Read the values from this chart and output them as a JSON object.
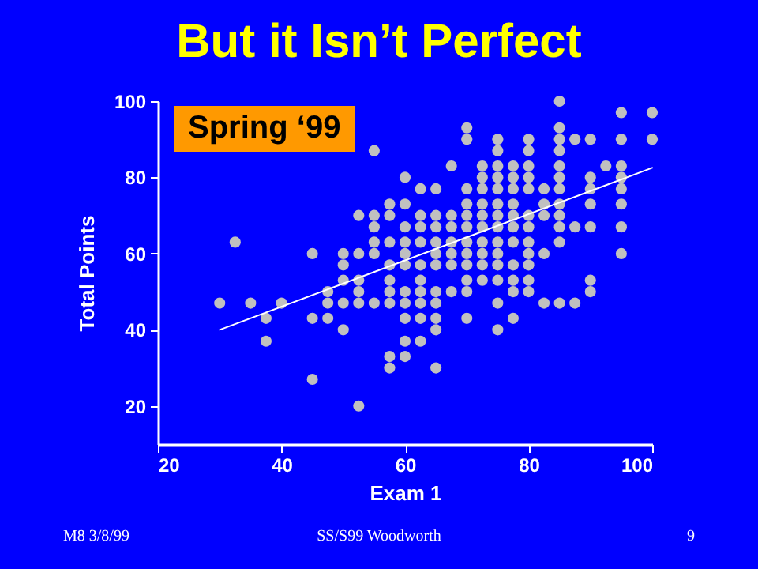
{
  "chart_data": {
    "type": "scatter",
    "title": "But it Isn’t Perfect",
    "xlabel": "Exam 1",
    "ylabel": "Total Points",
    "annotations": [
      "Spring ‘99",
      "M8 3/8/99",
      "SS/S99 Woodworth",
      "9"
    ],
    "xlim": [
      20,
      100
    ],
    "xticks": [
      20,
      40,
      60,
      80,
      100
    ],
    "ylim": [
      10,
      100
    ],
    "yticks": [
      20,
      40,
      60,
      80,
      100
    ],
    "series": [
      {
        "color": "#c0c0c0",
        "marker": "circle",
        "x": [
          85,
          95,
          100,
          70,
          85,
          70,
          75,
          80,
          85,
          87.5,
          90,
          95,
          100,
          55,
          75,
          80,
          85,
          67.5,
          72.5,
          75,
          77.5,
          80,
          85,
          92.5,
          95,
          60,
          72.5,
          75,
          77.5,
          80,
          85,
          90,
          95,
          62.5,
          65,
          70,
          72.5,
          75,
          77.5,
          80,
          82.5,
          85,
          90,
          95,
          57.5,
          60,
          70,
          72.5,
          75,
          77.5,
          82.5,
          85,
          90,
          95,
          52.5,
          55,
          57.5,
          62.5,
          65,
          67.5,
          70,
          72.5,
          75,
          77.5,
          80,
          82.5,
          85,
          55,
          60,
          62.5,
          65,
          67.5,
          70,
          72.5,
          75,
          77.5,
          80,
          85,
          87.5,
          90,
          95,
          32.5,
          55,
          57.5,
          60,
          62.5,
          65,
          67.5,
          70,
          72.5,
          75,
          77.5,
          80,
          85,
          45,
          50,
          52.5,
          55,
          60,
          65,
          67.5,
          70,
          72.5,
          75,
          80,
          82.5,
          95,
          50,
          57.5,
          60,
          62.5,
          65,
          67.5,
          70,
          72.5,
          75,
          77.5,
          80,
          50,
          52.5,
          57.5,
          62.5,
          70,
          72.5,
          75,
          77.5,
          80,
          90,
          47.5,
          52.5,
          57.5,
          60,
          62.5,
          65,
          67.5,
          70,
          77.5,
          80,
          90,
          30,
          35,
          40,
          47.5,
          50,
          52.5,
          55,
          57.5,
          60,
          62.5,
          65,
          75,
          82.5,
          85,
          87.5,
          37.5,
          45,
          47.5,
          60,
          62.5,
          65,
          70,
          77.5,
          50,
          65,
          75,
          37.5,
          60,
          62.5,
          57.5,
          60,
          57.5,
          65,
          45,
          52.5
        ],
        "values": [
          100,
          97,
          97,
          93,
          93,
          90,
          90,
          90,
          90,
          90,
          90,
          90,
          90,
          87,
          87,
          87,
          87,
          83,
          83,
          83,
          83,
          83,
          83,
          83,
          83,
          80,
          80,
          80,
          80,
          80,
          80,
          80,
          80,
          77,
          77,
          77,
          77,
          77,
          77,
          77,
          77,
          77,
          77,
          77,
          73,
          73,
          73,
          73,
          73,
          73,
          73,
          73,
          73,
          73,
          70,
          70,
          70,
          70,
          70,
          70,
          70,
          70,
          70,
          70,
          70,
          70,
          70,
          67,
          67,
          67,
          67,
          67,
          67,
          67,
          67,
          67,
          67,
          67,
          67,
          67,
          67,
          63,
          63,
          63,
          63,
          63,
          63,
          63,
          63,
          63,
          63,
          63,
          63,
          63,
          60,
          60,
          60,
          60,
          60,
          60,
          60,
          60,
          60,
          60,
          60,
          60,
          60,
          57,
          57,
          57,
          57,
          57,
          57,
          57,
          57,
          57,
          57,
          57,
          53,
          53,
          53,
          53,
          53,
          53,
          53,
          53,
          53,
          53,
          50,
          50,
          50,
          50,
          50,
          50,
          50,
          50,
          50,
          50,
          50,
          47,
          47,
          47,
          47,
          47,
          47,
          47,
          47,
          47,
          47,
          47,
          47,
          47,
          47,
          47,
          43,
          43,
          43,
          43,
          43,
          43,
          43,
          43,
          40,
          40,
          40,
          37,
          37,
          37,
          33,
          33,
          30,
          30,
          27,
          20
        ]
      },
      {
        "type": "line",
        "color": "#ffffff",
        "x": [
          30,
          100
        ],
        "values": [
          40,
          82.5
        ]
      }
    ]
  }
}
